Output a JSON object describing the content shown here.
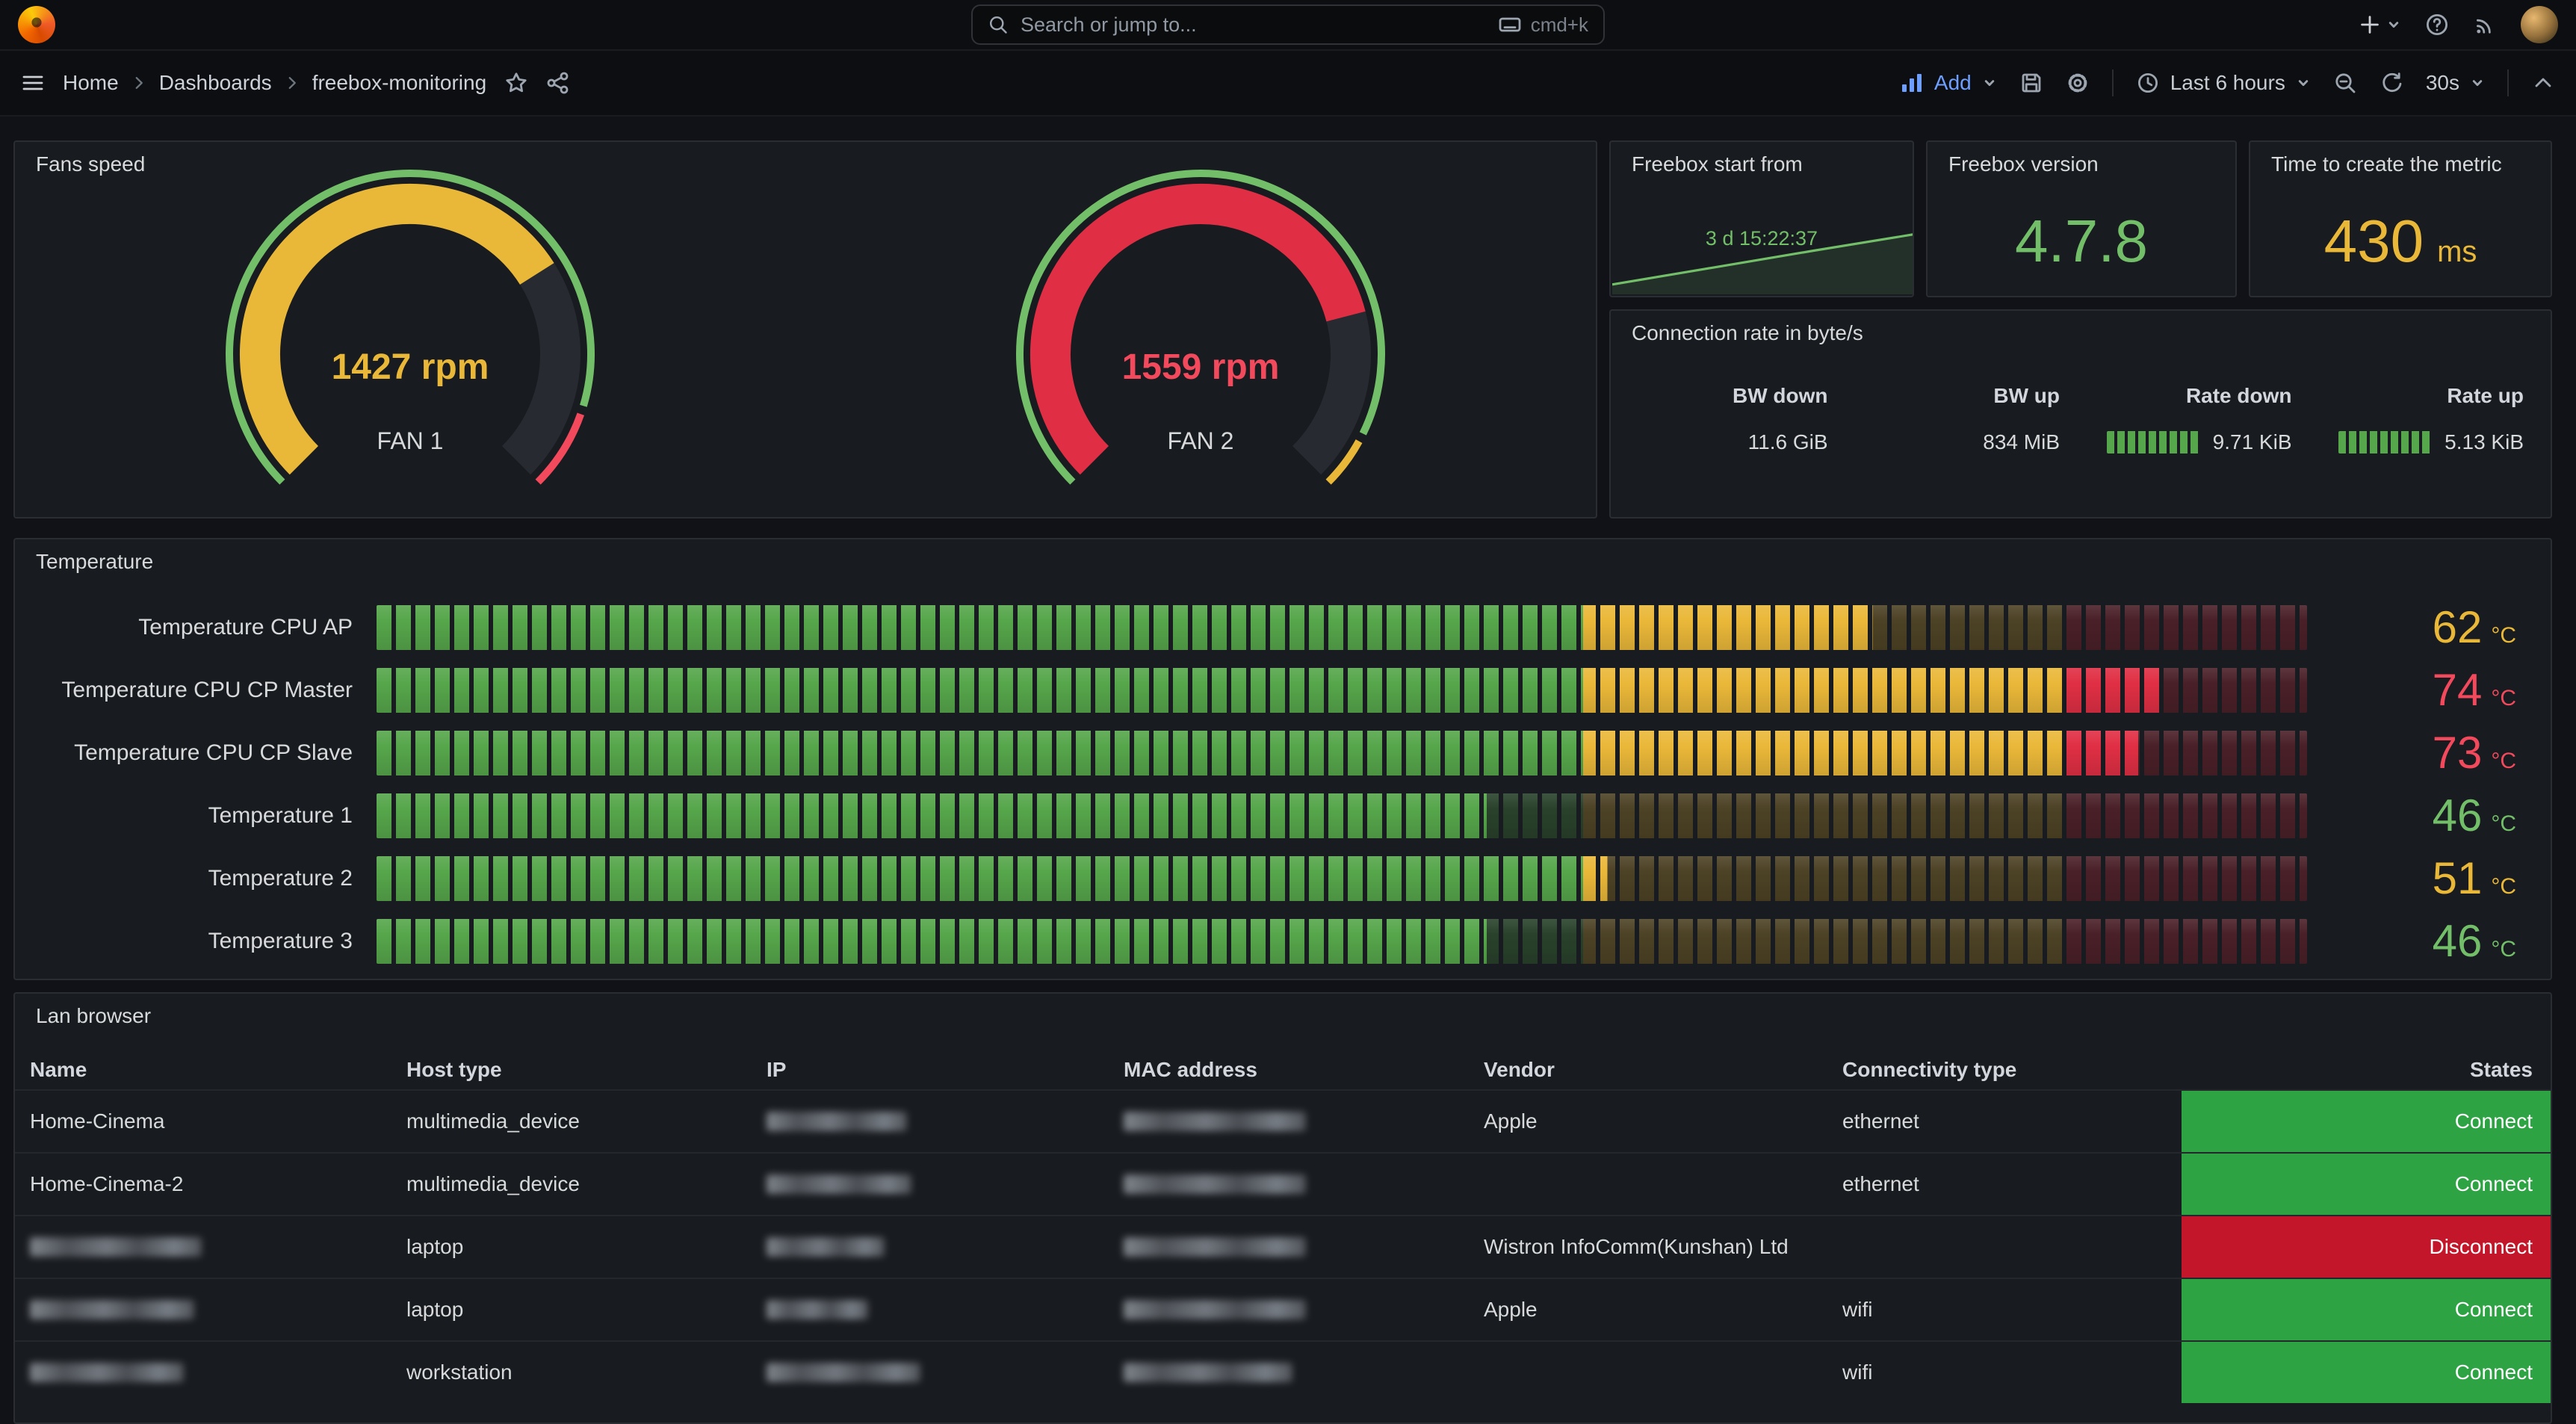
{
  "topnav": {
    "search_placeholder": "Search or jump to...",
    "shortcut_label": "cmd+k"
  },
  "toolbar": {
    "breadcrumb": [
      "Home",
      "Dashboards",
      "freebox-monitoring"
    ],
    "add_label": "Add",
    "time_range_label": "Last 6 hours",
    "refresh_interval_label": "30s"
  },
  "colors": {
    "green": "#73BF69",
    "green_bar": "#56A64B",
    "yellow": "#EAB839",
    "red": "#E02F44",
    "red_text": "#F2495C",
    "gauge_track": "#272A30",
    "dim_green": "rgba(86,166,75,0.28)",
    "dim_yellow": "rgba(234,184,57,0.25)",
    "dim_red": "rgba(224,47,68,0.25)"
  },
  "icons": [
    "grafana-logo",
    "search-icon",
    "keyboard-icon",
    "plus-icon",
    "caret-down-icon",
    "question-circle-icon",
    "rss-icon",
    "menu-icon",
    "chevron-right-icon",
    "star-icon",
    "share-icon",
    "graph-bar-icon",
    "save-icon",
    "gear-icon",
    "clock-icon",
    "zoom-out-icon",
    "refresh-icon",
    "chevron-up-icon"
  ],
  "chart_data": [
    {
      "type": "gauge",
      "title": "Fans speed",
      "min": 0,
      "max": 2000,
      "series": [
        {
          "name": "FAN 1",
          "value": 1427,
          "unit": "rpm",
          "color": "#EAB839",
          "ring": [
            {
              "color": "#73BF69",
              "from": 0,
              "to": 0.895
            },
            {
              "color": "#F2495C",
              "from": 0.905,
              "to": 1
            }
          ]
        },
        {
          "name": "FAN 2",
          "value": 1559,
          "unit": "rpm",
          "color": "#E02F44",
          "value_color": "#F2495C",
          "ring": [
            {
              "color": "#73BF69",
              "from": 0,
              "to": 0.93
            },
            {
              "color": "#EAB839",
              "from": 0.94,
              "to": 1
            }
          ]
        }
      ]
    },
    {
      "type": "line",
      "title": "Freebox start from",
      "value_label": "3 d 15:22:37",
      "series_color": "#73BF69",
      "legend_position": "none",
      "points": [
        [
          0,
          0.08
        ],
        [
          0.33,
          0.24
        ],
        [
          0.66,
          0.4
        ],
        [
          1,
          0.56
        ]
      ]
    },
    {
      "type": "stat",
      "title": "Freebox version",
      "value": "4.7.8",
      "color": "#73BF69"
    },
    {
      "type": "stat",
      "title": "Time to create the metric",
      "value": "430",
      "unit": "ms",
      "color": "#EAB839"
    },
    {
      "type": "table",
      "title": "Connection rate in byte/s",
      "columns": [
        "BW down",
        "BW up",
        "Rate down",
        "Rate up"
      ],
      "rows": [
        [
          "11.6 GiB",
          "834 MiB",
          "9.71 KiB",
          "5.13 KiB"
        ]
      ],
      "bar_gauge_columns": [
        2,
        3
      ]
    },
    {
      "type": "bar",
      "title": "Temperature",
      "orientation": "horizontal",
      "display": "retro-lcd",
      "unit": "°C",
      "min": 0,
      "max": 80,
      "thresholds": {
        "yellow": 50,
        "red": 70
      },
      "categories": [
        "Temperature CPU AP",
        "Temperature CPU CP Master",
        "Temperature CPU CP Slave",
        "Temperature 1",
        "Temperature 2",
        "Temperature 3"
      ],
      "values": [
        62,
        74,
        73,
        46,
        51,
        46
      ]
    },
    {
      "type": "table",
      "title": "Lan browser",
      "columns": [
        "Name",
        "Host type",
        "IP",
        "MAC address",
        "Vendor",
        "Connectivity type",
        "States"
      ],
      "rows": [
        [
          "Home-Cinema",
          "multimedia_device",
          {
            "redacted": true,
            "width": 94
          },
          {
            "redacted": true,
            "width": 122
          },
          "Apple",
          "ethernet",
          "Connect"
        ],
        [
          "Home-Cinema-2",
          "multimedia_device",
          {
            "redacted": true,
            "width": 97
          },
          {
            "redacted": true,
            "width": 122
          },
          "",
          "ethernet",
          "Connect"
        ],
        [
          {
            "redacted": true,
            "width": 115
          },
          "laptop",
          {
            "redacted": true,
            "width": 79
          },
          {
            "redacted": true,
            "width": 122
          },
          "Wistron InfoComm(Kunshan) Ltd",
          "",
          "Disconnect"
        ],
        [
          {
            "redacted": true,
            "width": 110
          },
          "laptop",
          {
            "redacted": true,
            "width": 68
          },
          {
            "redacted": true,
            "width": 122
          },
          "Apple",
          "wifi",
          "Connect"
        ],
        [
          {
            "redacted": true,
            "width": 103
          },
          "workstation",
          {
            "redacted": true,
            "width": 103
          },
          {
            "redacted": true,
            "width": 113
          },
          "",
          "wifi",
          "Connect"
        ]
      ],
      "state_colors": {
        "Connect": "#2DA343",
        "Disconnect": "#C4162A"
      }
    }
  ]
}
